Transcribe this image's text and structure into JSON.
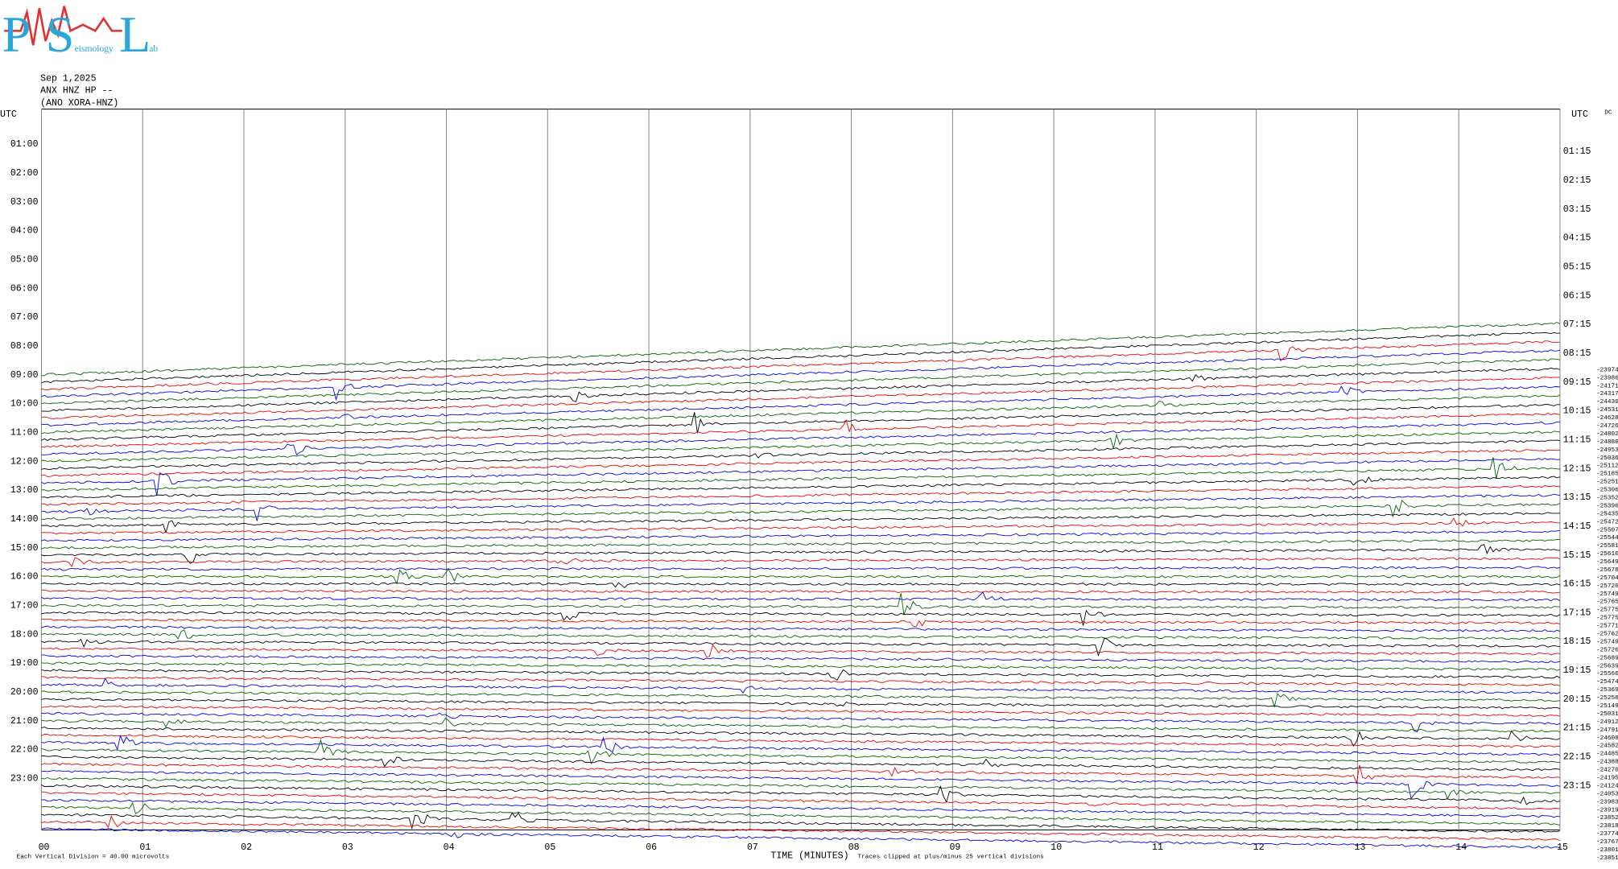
{
  "header": {
    "logo": [
      "P",
      "S",
      "L"
    ],
    "logo_words": [
      "eismology",
      "ab"
    ],
    "date": "Sep 1,2025",
    "station": "ANX HNZ HP --",
    "network": "(ANO XORA-HNZ)"
  },
  "utc_left": "UTC",
  "utc_right": "UTC",
  "dc": "DC",
  "left_times": [
    "01:00",
    "02:00",
    "03:00",
    "04:00",
    "05:00",
    "06:00",
    "07:00",
    "08:00",
    "09:00",
    "10:00",
    "11:00",
    "12:00",
    "13:00",
    "14:00",
    "15:00",
    "16:00",
    "17:00",
    "18:00",
    "19:00",
    "20:00",
    "21:00",
    "22:00",
    "23:00"
  ],
  "right_times": [
    "01:15",
    "02:15",
    "03:15",
    "04:15",
    "05:15",
    "06:15",
    "07:15",
    "08:15",
    "09:15",
    "10:15",
    "11:15",
    "12:15",
    "13:15",
    "14:15",
    "15:15",
    "16:15",
    "17:15",
    "18:15",
    "19:15",
    "20:15",
    "21:15",
    "22:15",
    "23:15"
  ],
  "x_ticks": [
    "00",
    "01",
    "02",
    "03",
    "04",
    "05",
    "06",
    "07",
    "08",
    "09",
    "10",
    "11",
    "12",
    "13",
    "14",
    "15"
  ],
  "x_label": "TIME (MINUTES)",
  "clip_note": "Traces clipped at plus/minus 25 vertical divisions",
  "division_note": "Each Vertical Division =   40.00 microvolts",
  "offsets": [
    -23974,
    -23986,
    -24171,
    -24317,
    -24430,
    -24531,
    -24628,
    -24726,
    -24802,
    -24880,
    -24953,
    -25036,
    -25112,
    -25185,
    -25251,
    -25306,
    -25352,
    -25396,
    -25435,
    -25472,
    -25507,
    -25544,
    -25581,
    -25616,
    -25649,
    -25678,
    -25704,
    -25720,
    -25749,
    -25765,
    -25775,
    -25775,
    -25771,
    -25762,
    -25749,
    -25726,
    -25689,
    -25639,
    -25566,
    -25474,
    -25369,
    -25258,
    -25149,
    -25031,
    -24912,
    -24791,
    -24608,
    -24582,
    -24485,
    -24388,
    -24270,
    -24195,
    -24124,
    -24053,
    -23983,
    -23919,
    -23852,
    -23818,
    -23774,
    -23767,
    -23801,
    -23851
  ]
}
